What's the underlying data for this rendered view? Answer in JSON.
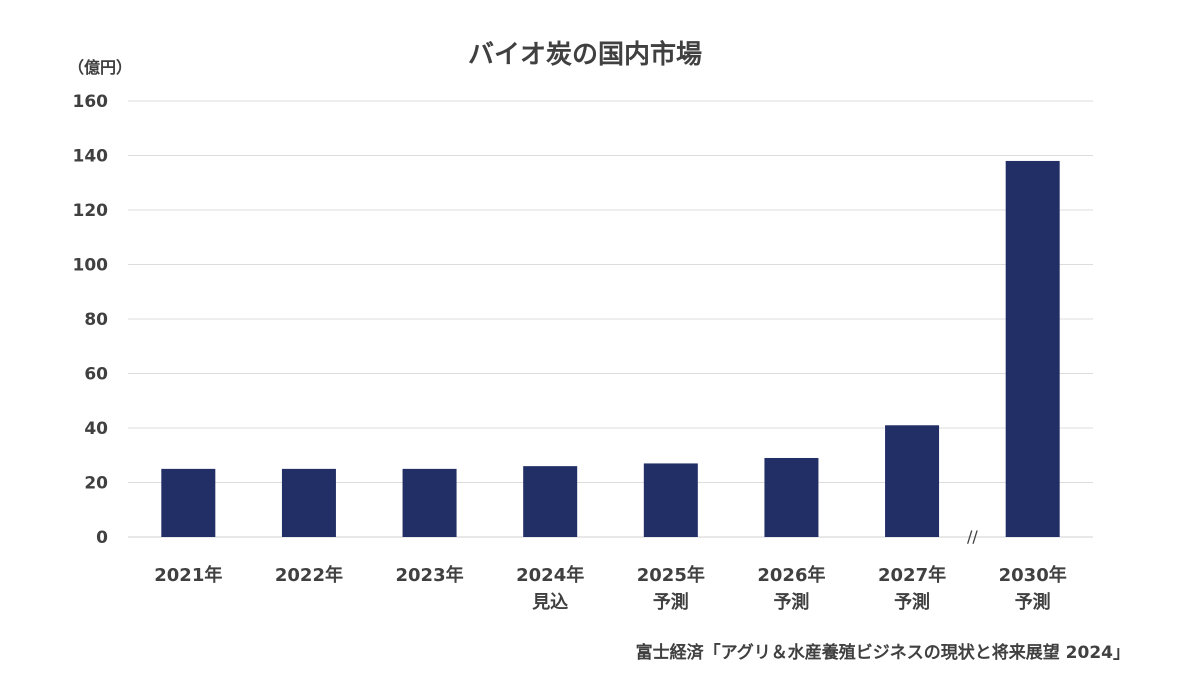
{
  "chart_data": {
    "type": "bar",
    "title": "バイオ炭の国内市場",
    "ylabel": "（億円）",
    "ylim": [
      0,
      160
    ],
    "yticks": [
      0,
      20,
      40,
      60,
      80,
      100,
      120,
      140,
      160
    ],
    "grid": true,
    "categories": [
      [
        "2021年"
      ],
      [
        "2022年"
      ],
      [
        "2023年"
      ],
      [
        "2024年",
        "見込"
      ],
      [
        "2025年",
        "予測"
      ],
      [
        "2026年",
        "予測"
      ],
      [
        "2027年",
        "予測"
      ],
      [
        "2030年",
        "予測"
      ]
    ],
    "values": [
      25,
      25,
      25,
      26,
      27,
      29,
      41,
      138
    ],
    "bar_color": "#222E66",
    "axis_break": {
      "after_index": 6,
      "mark": "//"
    },
    "source": "富士経済「アグリ＆水産養殖ビジネスの現状と将来展望 2024」"
  }
}
